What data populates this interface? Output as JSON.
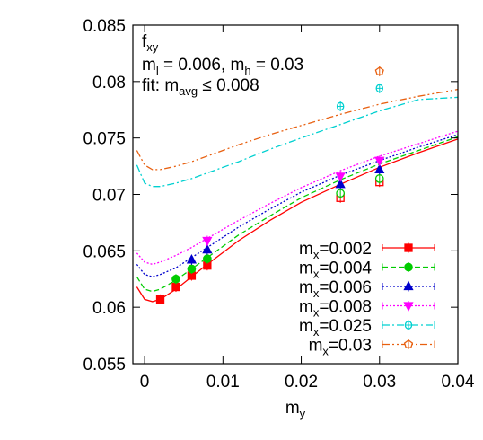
{
  "chart_data": {
    "type": "scatter",
    "xlabel_main": "m",
    "xlabel_sub": "y",
    "xlim": [
      -0.0015,
      0.04
    ],
    "ylim": [
      0.055,
      0.085
    ],
    "xticks": [
      0,
      0.01,
      0.02,
      0.03,
      0.04
    ],
    "xtick_labels": [
      "0",
      "0.01",
      "0.02",
      "0.03",
      "0.04"
    ],
    "yticks": [
      0.055,
      0.06,
      0.065,
      0.07,
      0.075,
      0.08,
      0.085
    ],
    "ytick_labels": [
      "0.055",
      "0.06",
      "0.065",
      "0.07",
      "0.075",
      "0.08",
      "0.085"
    ],
    "annotation": {
      "line1_main": "f",
      "line1_sub": "xy",
      "line2_a": "m",
      "line2_a_sub": "l",
      "line2_b": " = 0.006, m",
      "line2_b_sub": "h",
      "line2_c": " = 0.03",
      "line3_a": "fit: m",
      "line3_a_sub": "avg",
      "line3_b": " ≤ 0.008"
    },
    "series": [
      {
        "name_main": "m",
        "name_sub": "x",
        "name_rest": "=0.002",
        "color": "#ff0000",
        "marker": "square",
        "line": "solid",
        "points": [
          [
            0.002,
            0.0607,
            true
          ],
          [
            0.004,
            0.0618,
            true
          ],
          [
            0.006,
            0.0628,
            true
          ],
          [
            0.008,
            0.0637,
            true
          ],
          [
            0.025,
            0.0697,
            false
          ],
          [
            0.03,
            0.0711,
            false
          ]
        ],
        "curve": [
          [
            -0.001,
            0.0618
          ],
          [
            0.0,
            0.0607
          ],
          [
            0.001,
            0.0605
          ],
          [
            0.002,
            0.0607
          ],
          [
            0.004,
            0.0616
          ],
          [
            0.006,
            0.0627
          ],
          [
            0.008,
            0.0638
          ],
          [
            0.012,
            0.0659
          ],
          [
            0.016,
            0.0677
          ],
          [
            0.02,
            0.0693
          ],
          [
            0.025,
            0.0709
          ],
          [
            0.03,
            0.0724
          ],
          [
            0.035,
            0.0737
          ],
          [
            0.04,
            0.0749
          ]
        ]
      },
      {
        "name_main": "m",
        "name_sub": "x",
        "name_rest": "=0.004",
        "color": "#00cc00",
        "marker": "circle",
        "line": "dashed",
        "points": [
          [
            0.004,
            0.0625,
            true
          ],
          [
            0.006,
            0.0634,
            true
          ],
          [
            0.008,
            0.0643,
            true
          ],
          [
            0.025,
            0.0701,
            false
          ],
          [
            0.03,
            0.0714,
            false
          ]
        ],
        "curve": [
          [
            -0.001,
            0.0627
          ],
          [
            0.0,
            0.0616
          ],
          [
            0.001,
            0.0614
          ],
          [
            0.002,
            0.0616
          ],
          [
            0.004,
            0.0624
          ],
          [
            0.006,
            0.0634
          ],
          [
            0.008,
            0.0644
          ],
          [
            0.012,
            0.0664
          ],
          [
            0.016,
            0.0681
          ],
          [
            0.02,
            0.0697
          ],
          [
            0.025,
            0.0713
          ],
          [
            0.03,
            0.0727
          ],
          [
            0.035,
            0.0739
          ],
          [
            0.04,
            0.0751
          ]
        ]
      },
      {
        "name_main": "m",
        "name_sub": "x",
        "name_rest": "=0.006",
        "color": "#0000cc",
        "marker": "triangle",
        "line": "dotted",
        "points": [
          [
            0.006,
            0.0642,
            true
          ],
          [
            0.008,
            0.0651,
            true
          ],
          [
            0.025,
            0.0709,
            true
          ],
          [
            0.03,
            0.0722,
            true
          ]
        ],
        "curve": [
          [
            -0.001,
            0.0638
          ],
          [
            0.0,
            0.0629
          ],
          [
            0.001,
            0.0627
          ],
          [
            0.002,
            0.0629
          ],
          [
            0.004,
            0.0635
          ],
          [
            0.006,
            0.0644
          ],
          [
            0.008,
            0.0653
          ],
          [
            0.012,
            0.0671
          ],
          [
            0.016,
            0.0687
          ],
          [
            0.02,
            0.0702
          ],
          [
            0.025,
            0.0717
          ],
          [
            0.03,
            0.073
          ],
          [
            0.035,
            0.0742
          ],
          [
            0.04,
            0.0753
          ]
        ]
      },
      {
        "name_main": "m",
        "name_sub": "x",
        "name_rest": "=0.008",
        "color": "#ff00ff",
        "marker": "triangle-down",
        "line": "dotted",
        "points": [
          [
            0.008,
            0.0659,
            true
          ],
          [
            0.025,
            0.0716,
            true
          ],
          [
            0.03,
            0.073,
            true
          ]
        ],
        "curve": [
          [
            -0.001,
            0.0648
          ],
          [
            0.0,
            0.064
          ],
          [
            0.001,
            0.0638
          ],
          [
            0.002,
            0.064
          ],
          [
            0.004,
            0.0646
          ],
          [
            0.006,
            0.0653
          ],
          [
            0.008,
            0.0661
          ],
          [
            0.012,
            0.0677
          ],
          [
            0.016,
            0.0692
          ],
          [
            0.02,
            0.0706
          ],
          [
            0.025,
            0.0721
          ],
          [
            0.03,
            0.0734
          ],
          [
            0.035,
            0.0745
          ],
          [
            0.04,
            0.0756
          ]
        ]
      },
      {
        "name_main": "m",
        "name_sub": "x",
        "name_rest": "=0.025",
        "color": "#00d0d0",
        "marker": "diamond-open",
        "line": "dashdot",
        "points": [
          [
            0.025,
            0.0778,
            false
          ],
          [
            0.03,
            0.0794,
            false
          ]
        ],
        "curve": [
          [
            -0.001,
            0.0726
          ],
          [
            0.0,
            0.071
          ],
          [
            0.001,
            0.0707
          ],
          [
            0.002,
            0.0707
          ],
          [
            0.004,
            0.071
          ],
          [
            0.006,
            0.0714
          ],
          [
            0.008,
            0.0719
          ],
          [
            0.012,
            0.0729
          ],
          [
            0.016,
            0.074
          ],
          [
            0.02,
            0.075
          ],
          [
            0.025,
            0.0762
          ],
          [
            0.03,
            0.0774
          ],
          [
            0.035,
            0.0784
          ],
          [
            0.04,
            0.0786
          ]
        ]
      },
      {
        "name_main": "m",
        "name_sub": "x",
        "name_rest": "=0.03",
        "color": "#e86010",
        "marker": "pentagon-open",
        "line": "dashdotdot",
        "points": [
          [
            0.03,
            0.0809,
            false
          ]
        ],
        "curve": [
          [
            -0.001,
            0.0739
          ],
          [
            0.0,
            0.0726
          ],
          [
            0.001,
            0.0722
          ],
          [
            0.002,
            0.0722
          ],
          [
            0.004,
            0.0725
          ],
          [
            0.006,
            0.0729
          ],
          [
            0.008,
            0.0734
          ],
          [
            0.012,
            0.0744
          ],
          [
            0.016,
            0.0753
          ],
          [
            0.02,
            0.0761
          ],
          [
            0.025,
            0.0771
          ],
          [
            0.03,
            0.078
          ],
          [
            0.035,
            0.0787
          ],
          [
            0.04,
            0.0793
          ]
        ]
      }
    ]
  }
}
